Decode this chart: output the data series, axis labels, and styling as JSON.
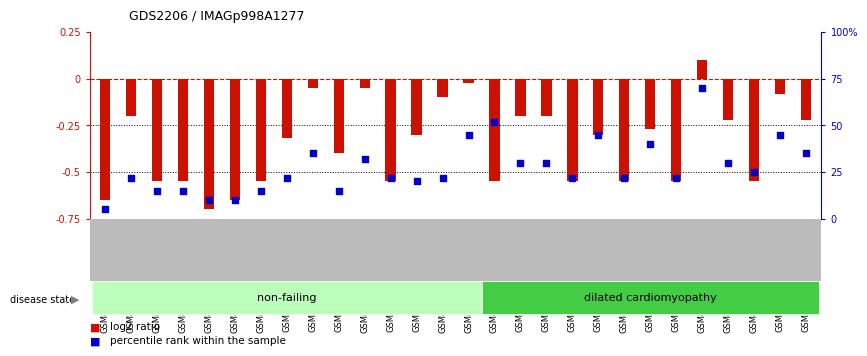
{
  "title": "GDS2206 / IMAGp998A1277",
  "categories": [
    "GSM82393",
    "GSM82394",
    "GSM82395",
    "GSM82396",
    "GSM82397",
    "GSM82398",
    "GSM82399",
    "GSM82400",
    "GSM82401",
    "GSM82402",
    "GSM82403",
    "GSM82404",
    "GSM82405",
    "GSM82406",
    "GSM82407",
    "GSM82408",
    "GSM82409",
    "GSM82410",
    "GSM82411",
    "GSM82412",
    "GSM82413",
    "GSM82414",
    "GSM82415",
    "GSM82416",
    "GSM82417",
    "GSM82418",
    "GSM82419",
    "GSM82420"
  ],
  "log2_ratio": [
    -0.65,
    -0.2,
    -0.55,
    -0.55,
    -0.7,
    -0.65,
    -0.55,
    -0.32,
    -0.05,
    -0.4,
    -0.05,
    -0.55,
    -0.3,
    -0.1,
    -0.02,
    -0.55,
    -0.2,
    -0.2,
    -0.55,
    -0.3,
    -0.55,
    -0.27,
    -0.55,
    0.1,
    -0.22,
    -0.55,
    -0.08,
    -0.22
  ],
  "percentile": [
    5,
    22,
    15,
    15,
    10,
    10,
    15,
    22,
    35,
    15,
    32,
    22,
    20,
    22,
    45,
    52,
    30,
    30,
    22,
    45,
    22,
    40,
    22,
    70,
    30,
    25,
    45,
    35
  ],
  "non_failing_count": 15,
  "bar_color": "#cc1100",
  "dot_color": "#0000cc",
  "nonfailing_color": "#bbffbb",
  "dcm_color": "#44cc44",
  "bg_color": "#ffffff",
  "ylim_left": [
    -0.75,
    0.25
  ],
  "ylim_right": [
    0,
    100
  ],
  "zero_line_color": "#cc1100",
  "dotted_line_color": "#000000",
  "label_bg_color": "#bbbbbb"
}
